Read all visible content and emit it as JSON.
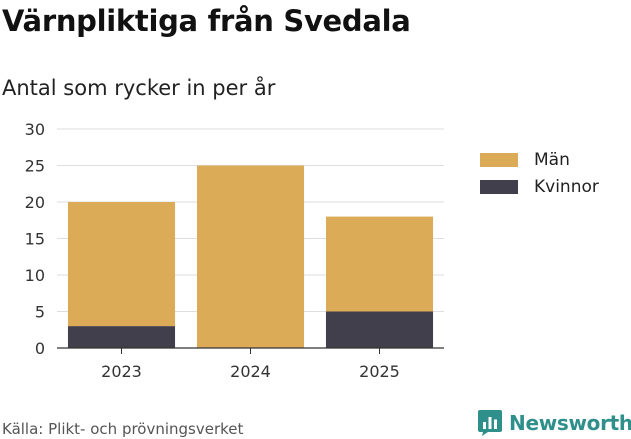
{
  "header": {
    "title": "Värnpliktiga från Svedala",
    "subtitle": "Antal som rycker in per år"
  },
  "chart_data": {
    "type": "bar",
    "stacked": true,
    "categories": [
      "2023",
      "2024",
      "2025"
    ],
    "series": [
      {
        "name": "Kvinnor",
        "values": [
          3,
          0,
          5
        ],
        "color": "#413f4c"
      },
      {
        "name": "Män",
        "values": [
          17,
          25,
          13
        ],
        "color": "#dcab58"
      }
    ],
    "ylim": [
      0,
      30
    ],
    "yticks": [
      "0",
      "5",
      "10",
      "15",
      "20",
      "25",
      "30"
    ],
    "grid": true,
    "legend_position": "right"
  },
  "legend": {
    "items": [
      {
        "label": "Män",
        "color": "#dcab58"
      },
      {
        "label": "Kvinnor",
        "color": "#413f4c"
      }
    ]
  },
  "footer": {
    "source": "Källa: Plikt- och prövningsverket",
    "brand": "Newsworthy",
    "brand_icon": "bar-chart-logo-icon",
    "brand_color": "#2f8f8b"
  }
}
